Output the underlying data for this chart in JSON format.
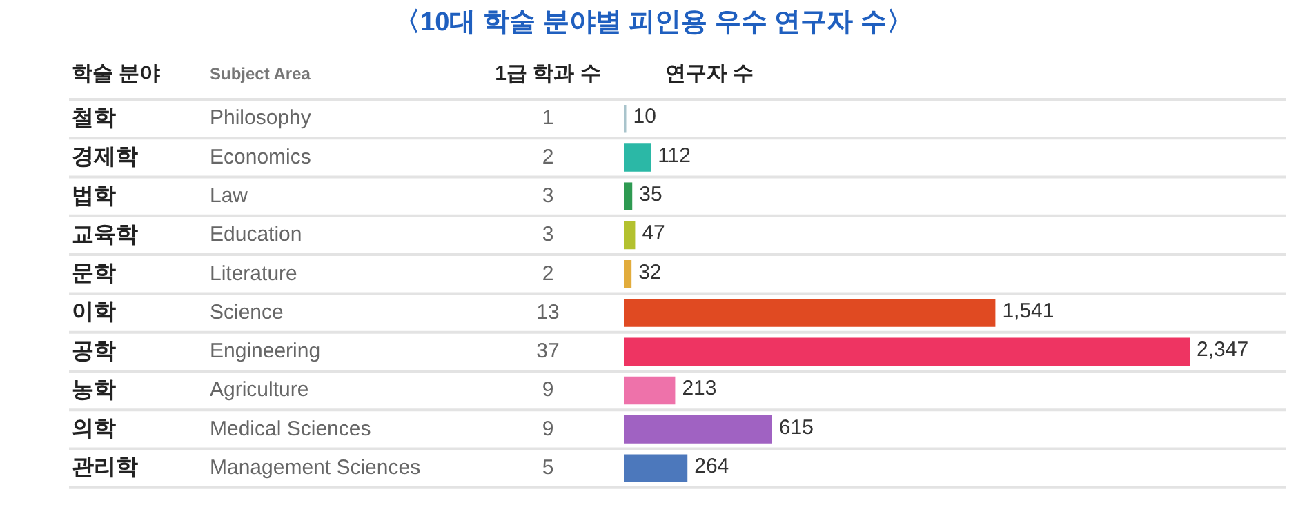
{
  "chart_data": {
    "type": "bar",
    "orientation": "horizontal",
    "title": "〈10대 학술 분야별 피인용 우수 연구자 수〉",
    "categories": [
      "철학",
      "경제학",
      "법학",
      "교육학",
      "문학",
      "이학",
      "공학",
      "농학",
      "의학",
      "관리학"
    ],
    "values": [
      10,
      112,
      35,
      47,
      32,
      1541,
      2347,
      213,
      615,
      264
    ],
    "value_labels": [
      "10",
      "112",
      "35",
      "47",
      "32",
      "1,541",
      "2,347",
      "213",
      "615",
      "264"
    ],
    "colors": [
      "#a9c4cc",
      "#2bb8a6",
      "#2e9a52",
      "#b3c12f",
      "#e2ac3c",
      "#e04a22",
      "#ee3462",
      "#ee72aa",
      "#a062c2",
      "#4c78bc"
    ],
    "grid": "y",
    "legend": false,
    "annotations": [
      "학술 분야",
      "Subject Area",
      "1급 학과 수",
      "연구자 수",
      "Philosophy",
      "1",
      "Economics",
      "2",
      "Law",
      "3",
      "Education",
      "3",
      "Literature",
      "2",
      "Science",
      "13",
      "Engineering",
      "37",
      "Agriculture",
      "9",
      "Medical Sciences",
      "9",
      "Management Sciences",
      "5"
    ]
  }
}
